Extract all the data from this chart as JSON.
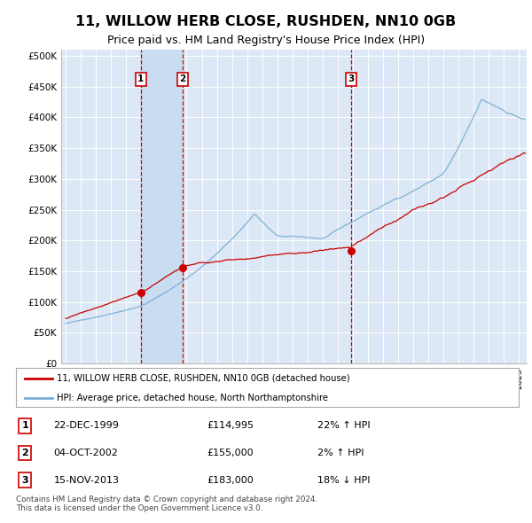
{
  "title": "11, WILLOW HERB CLOSE, RUSHDEN, NN10 0GB",
  "subtitle": "Price paid vs. HM Land Registry's House Price Index (HPI)",
  "bg_color": "#ffffff",
  "plot_bg_color": "#dce8f5",
  "grid_color": "#ffffff",
  "hpi_line_color": "#7aaed6",
  "price_line_color": "#cc0000",
  "sale_marker_color": "#cc0000",
  "vspan_color": "#c8ddf0",
  "dashed_color": "#cc0000",
  "yticks": [
    0,
    50000,
    100000,
    150000,
    200000,
    250000,
    300000,
    350000,
    400000,
    450000,
    500000
  ],
  "ytick_labels": [
    "£0",
    "£50K",
    "£100K",
    "£150K",
    "£200K",
    "£250K",
    "£300K",
    "£350K",
    "£400K",
    "£450K",
    "£500K"
  ],
  "sales": [
    {
      "label": "1",
      "date_str": "22-DEC-1999",
      "year": 1999.97,
      "price": 114995
    },
    {
      "label": "2",
      "date_str": "04-OCT-2002",
      "year": 2002.75,
      "price": 155000
    },
    {
      "label": "3",
      "date_str": "15-NOV-2013",
      "year": 2013.87,
      "price": 183000
    }
  ],
  "legend_entries": [
    {
      "label": "11, WILLOW HERB CLOSE, RUSHDEN, NN10 0GB (detached house)",
      "color": "#cc0000"
    },
    {
      "label": "HPI: Average price, detached house, North Northamptonshire",
      "color": "#7aaed6"
    }
  ],
  "table_rows": [
    {
      "num": "1",
      "date": "22-DEC-1999",
      "price": "£114,995",
      "hpi": "22% ↑ HPI"
    },
    {
      "num": "2",
      "date": "04-OCT-2002",
      "price": "£155,000",
      "hpi": "2% ↑ HPI"
    },
    {
      "num": "3",
      "date": "15-NOV-2013",
      "price": "£183,000",
      "hpi": "18% ↓ HPI"
    }
  ],
  "footnote": "Contains HM Land Registry data © Crown copyright and database right 2024.\nThis data is licensed under the Open Government Licence v3.0."
}
